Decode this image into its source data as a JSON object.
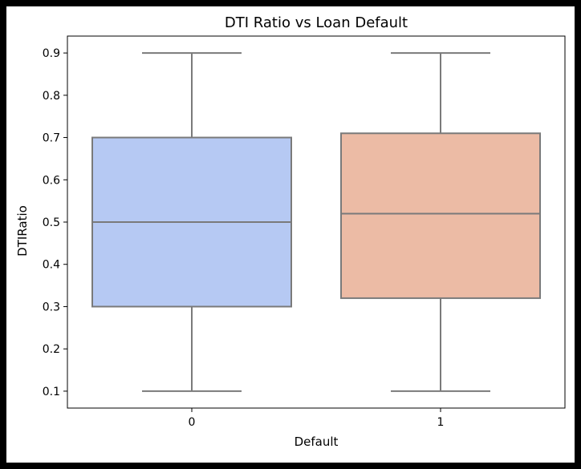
{
  "chart_data": {
    "type": "box",
    "title": "DTI Ratio vs Loan Default",
    "xlabel": "Default",
    "ylabel": "DTIRatio",
    "ylim": [
      0.06,
      0.94
    ],
    "yticks": [
      "0.1",
      "0.2",
      "0.3",
      "0.4",
      "0.5",
      "0.6",
      "0.7",
      "0.8",
      "0.9"
    ],
    "categories": [
      "0",
      "1"
    ],
    "series": [
      {
        "category": "0",
        "whisker_low": 0.1,
        "q1": 0.3,
        "median": 0.5,
        "q3": 0.7,
        "whisker_high": 0.9,
        "color": "#b6c9f3"
      },
      {
        "category": "1",
        "whisker_low": 0.1,
        "q1": 0.32,
        "median": 0.52,
        "q3": 0.71,
        "whisker_high": 0.9,
        "color": "#ecbba5"
      }
    ],
    "box_edge_color": "#7a7a7a",
    "grid": false,
    "legend": "none"
  }
}
